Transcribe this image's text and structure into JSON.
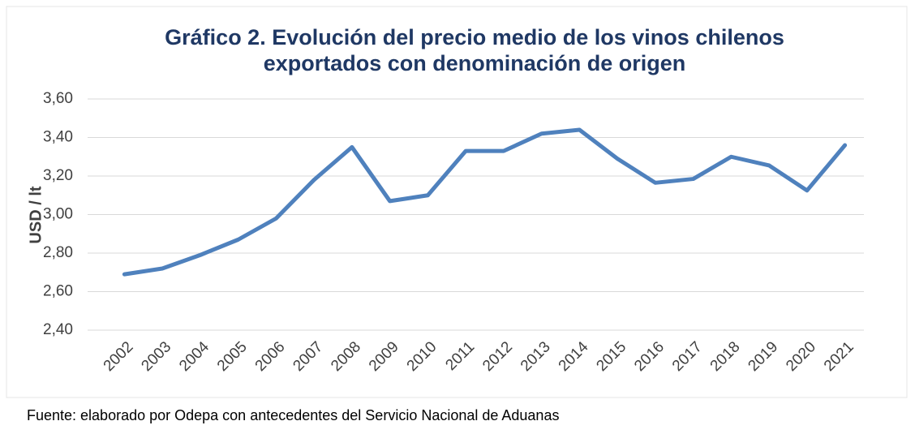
{
  "chart_data": {
    "type": "line",
    "title": [
      "Gráfico 2. Evolución del precio medio de los vinos chilenos",
      "exportados con denominación de origen"
    ],
    "ylabel": "USD / lt",
    "footnote": "Fuente: elaborado por Odepa con antecedentes del Servicio Nacional de Aduanas",
    "categories": [
      "2002",
      "2003",
      "2004",
      "2005",
      "2006",
      "2007",
      "2008",
      "2009",
      "2010",
      "2011",
      "2012",
      "2013",
      "2014",
      "2015",
      "2016",
      "2017",
      "2018",
      "2019",
      "2020",
      "2021"
    ],
    "series": [
      {
        "name": "Precio medio",
        "color": "#4f81bd",
        "values": [
          2.69,
          2.72,
          2.79,
          2.87,
          2.98,
          3.18,
          3.35,
          3.07,
          3.1,
          3.33,
          3.33,
          3.42,
          3.44,
          3.29,
          3.165,
          3.185,
          3.3,
          3.255,
          3.125,
          3.36
        ]
      }
    ],
    "ylim": [
      2.4,
      3.6
    ],
    "yticks": [
      {
        "value": 2.4,
        "label": "2,40"
      },
      {
        "value": 2.6,
        "label": "2,60"
      },
      {
        "value": 2.8,
        "label": "2,80"
      },
      {
        "value": 3.0,
        "label": "3,00"
      },
      {
        "value": 3.2,
        "label": "3,20"
      },
      {
        "value": 3.4,
        "label": "3,40"
      },
      {
        "value": 3.6,
        "label": "3,60"
      }
    ],
    "grid": true
  }
}
